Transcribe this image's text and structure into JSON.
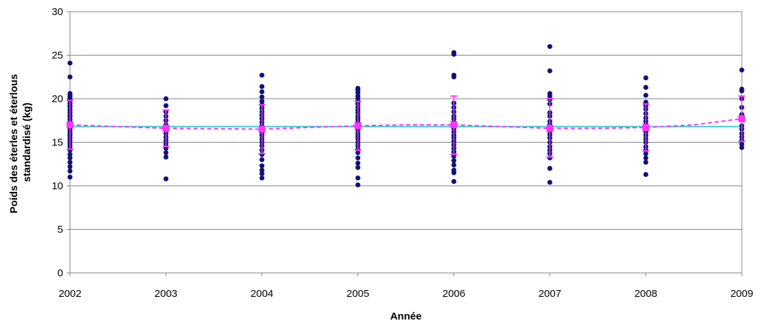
{
  "chart_data": {
    "type": "scatter",
    "title": "",
    "xlabel": "Année",
    "ylabel_lines": [
      "Poids des éterles et éterlous",
      "standardisé (kg)"
    ],
    "x_ticks": [
      2002,
      2003,
      2004,
      2005,
      2006,
      2007,
      2008,
      2009
    ],
    "y_ticks": [
      0,
      5,
      10,
      15,
      20,
      25,
      30
    ],
    "xlim": [
      2002,
      2009
    ],
    "ylim": [
      0,
      30
    ],
    "grid": "horizontal",
    "legend": "none",
    "series": [
      {
        "kind": "individual_points",
        "color": "#12127a",
        "points": [
          {
            "x": 2002,
            "y": [
              24.1,
              22.5,
              20.6,
              20.4,
              20.2,
              20.0,
              19.8,
              19.5,
              19.2,
              19.0,
              18.7,
              18.4,
              18.1,
              17.9,
              17.6,
              17.3,
              17.1,
              16.9,
              16.6,
              16.3,
              16.0,
              15.8,
              15.5,
              15.2,
              14.8,
              14.5,
              14.1,
              13.6,
              13.2,
              12.7,
              12.2,
              11.7,
              11.0
            ]
          },
          {
            "x": 2003,
            "y": [
              20.0,
              19.2,
              18.5,
              18.0,
              17.5,
              17.0,
              16.7,
              16.4,
              16.0,
              15.6,
              15.2,
              14.8,
              14.3,
              13.8,
              13.3,
              10.8
            ]
          },
          {
            "x": 2004,
            "y": [
              22.7,
              21.4,
              20.8,
              20.2,
              19.7,
              19.3,
              18.9,
              18.5,
              18.1,
              17.7,
              17.3,
              16.9,
              16.5,
              16.1,
              15.8,
              15.4,
              15.0,
              14.6,
              14.1,
              13.6,
              13.0,
              12.3,
              11.8,
              11.4,
              10.9
            ]
          },
          {
            "x": 2005,
            "y": [
              21.2,
              21.0,
              20.7,
              20.3,
              20.0,
              19.7,
              19.4,
              19.0,
              18.7,
              18.4,
              18.0,
              17.7,
              17.4,
              17.0,
              16.7,
              16.4,
              16.0,
              15.7,
              15.4,
              15.0,
              14.6,
              14.2,
              13.8,
              13.2,
              12.6,
              12.1,
              10.9,
              10.1
            ]
          },
          {
            "x": 2006,
            "y": [
              25.3,
              25.1,
              22.7,
              22.5,
              19.5,
              19.0,
              18.5,
              18.0,
              17.7,
              17.3,
              17.0,
              16.6,
              16.2,
              15.8,
              15.5,
              15.1,
              14.7,
              14.3,
              13.9,
              13.4,
              12.9,
              12.4,
              11.8,
              11.5,
              10.5
            ]
          },
          {
            "x": 2007,
            "y": [
              26.0,
              23.2,
              20.6,
              20.3,
              19.9,
              19.4,
              18.4,
              18.0,
              17.4,
              17.0,
              16.7,
              16.3,
              15.9,
              15.5,
              15.0,
              14.5,
              14.1,
              13.7,
              13.2,
              12.0,
              10.4
            ]
          },
          {
            "x": 2008,
            "y": [
              22.4,
              21.3,
              20.4,
              19.6,
              19.2,
              18.8,
              18.3,
              17.8,
              17.4,
              17.0,
              16.6,
              16.2,
              15.8,
              15.4,
              15.0,
              14.5,
              14.1,
              13.7,
              13.2,
              12.7,
              11.3
            ]
          },
          {
            "x": 2009,
            "y": [
              23.3,
              21.1,
              20.9,
              20.0,
              19.0,
              18.2,
              17.6,
              16.9,
              16.5,
              16.0,
              15.6,
              15.2,
              14.8,
              14.4
            ]
          }
        ]
      },
      {
        "kind": "annual_mean",
        "color": "#ff33ff",
        "x": [
          2002,
          2003,
          2004,
          2005,
          2006,
          2007,
          2008,
          2009
        ],
        "mean": [
          17.0,
          16.6,
          16.5,
          16.9,
          17.0,
          16.6,
          16.7,
          17.7
        ],
        "err_low": [
          14.2,
          14.5,
          13.7,
          14.1,
          13.6,
          13.3,
          14.0,
          15.1
        ],
        "err_high": [
          19.8,
          18.7,
          19.3,
          19.7,
          20.3,
          20.0,
          19.4,
          20.3
        ]
      },
      {
        "kind": "smoothed_trend_dashed",
        "color": "#ff33ff",
        "x": [
          2002,
          2002.5,
          2003,
          2003.5,
          2004,
          2004.5,
          2005,
          2005.5,
          2006,
          2006.5,
          2007,
          2007.5,
          2008,
          2008.5,
          2009
        ],
        "y": [
          17.0,
          16.8,
          16.6,
          16.55,
          16.5,
          16.7,
          16.9,
          17.0,
          17.0,
          16.8,
          16.6,
          16.6,
          16.7,
          17.0,
          17.7
        ]
      },
      {
        "kind": "overall_mean_line",
        "color": "#33cccc",
        "y": 16.8
      }
    ]
  }
}
